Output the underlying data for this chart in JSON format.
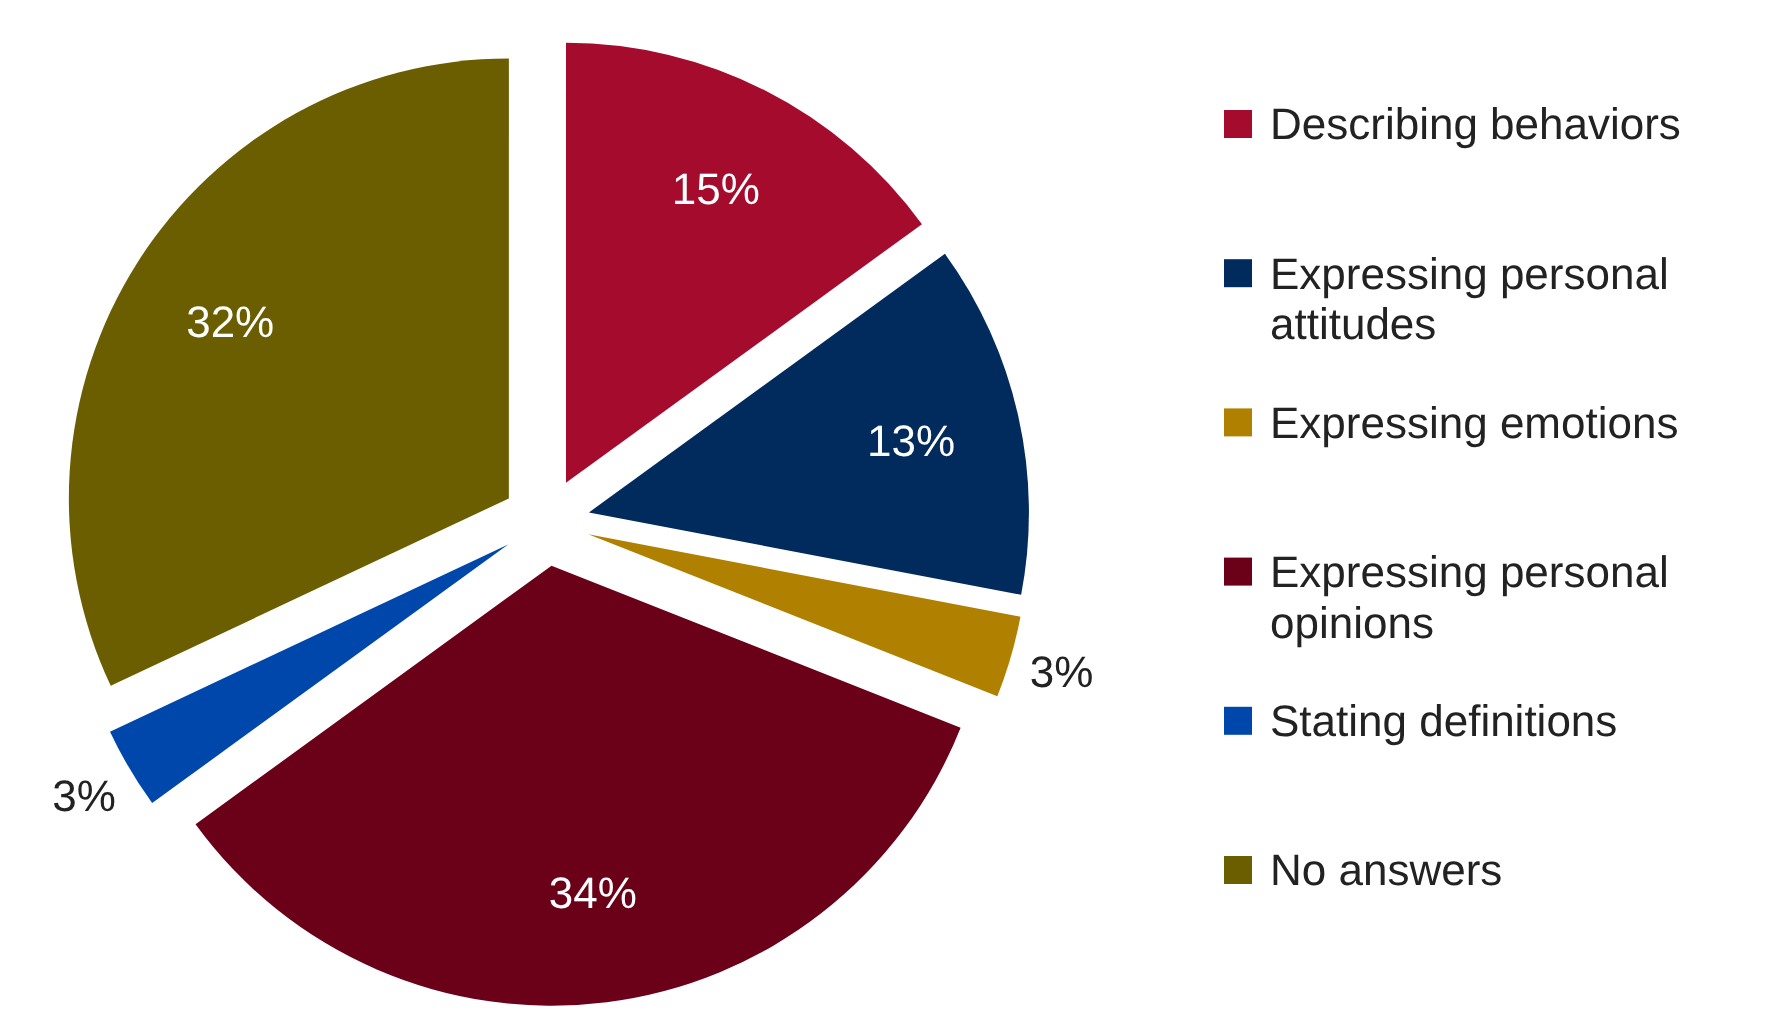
{
  "chart_data": {
    "type": "pie",
    "categories": [
      "Describing behaviors",
      "Expressing personal attitudes",
      "Expressing emotions",
      "Expressing personal opinions",
      "Stating definitions",
      "No answers"
    ],
    "values": [
      15,
      13,
      3,
      34,
      3,
      32
    ],
    "value_labels": [
      "15%",
      "13%",
      "3%",
      "34%",
      "3%",
      "32%"
    ],
    "colors": [
      "#a50b2c",
      "#002b5c",
      "#b08000",
      "#6b0019",
      "#0047ab",
      "#6b5e00"
    ],
    "legend": "right"
  }
}
